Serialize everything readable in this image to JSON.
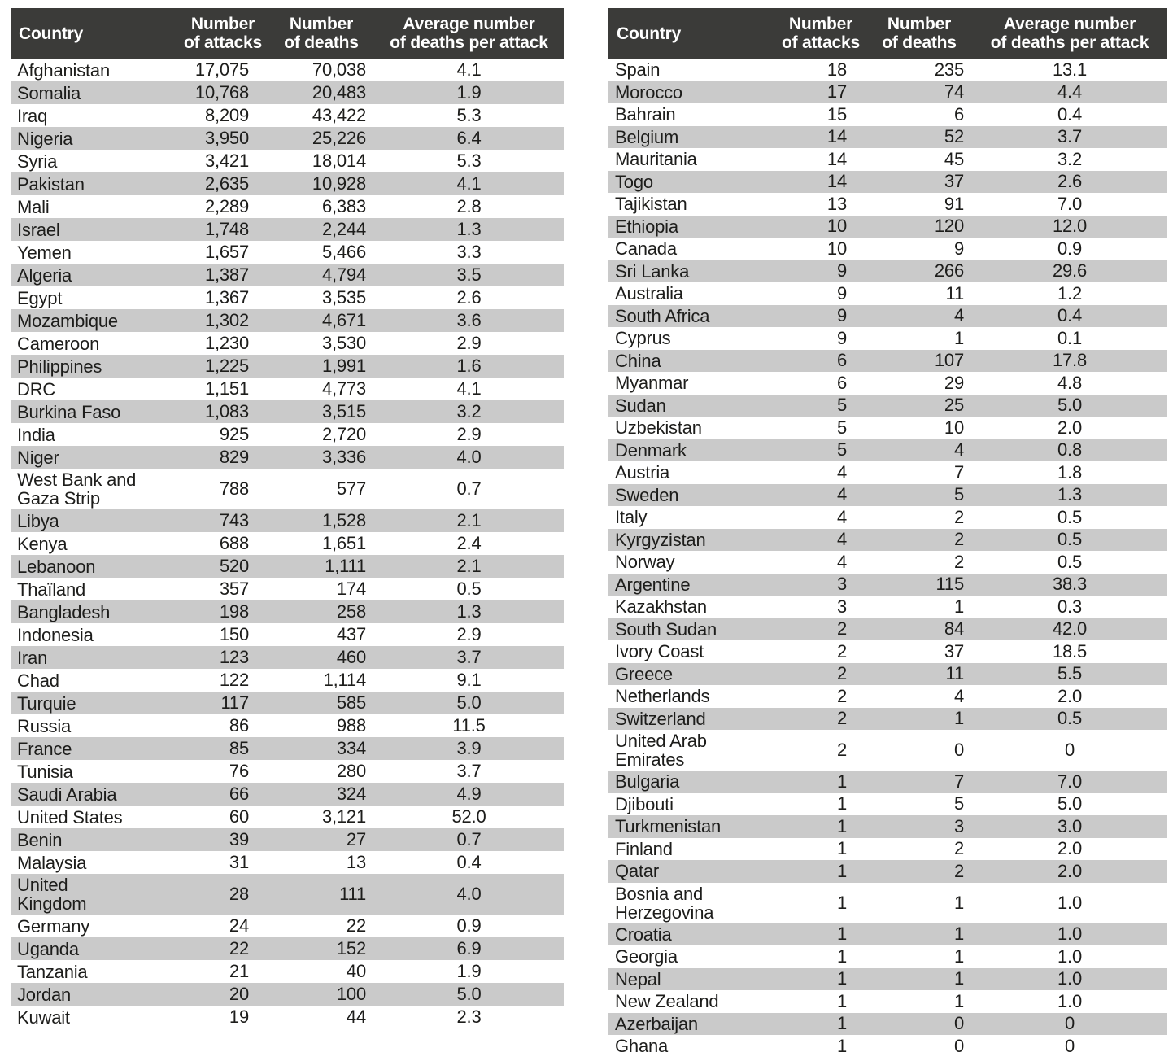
{
  "colors": {
    "header_bg": "#3b3b39",
    "header_text": "#ffffff",
    "row_stripe": "#cacaca",
    "row_plain": "#ffffff",
    "body_text": "#1d1d1b"
  },
  "chart_data": [
    {
      "type": "table",
      "name": "left_table",
      "title": "",
      "columns": [
        "Country",
        "Number of attacks",
        "Number of deaths",
        "Average number of deaths per attack"
      ],
      "columns_display": [
        "Country",
        "Number\nof attacks",
        "Number\nof deaths",
        "Average number\nof deaths per attack"
      ],
      "rows": [
        [
          "Afghanistan",
          "17,075",
          "70,038",
          "4.1"
        ],
        [
          "Somalia",
          "10,768",
          "20,483",
          "1.9"
        ],
        [
          "Iraq",
          "8,209",
          "43,422",
          "5.3"
        ],
        [
          "Nigeria",
          "3,950",
          "25,226",
          "6.4"
        ],
        [
          "Syria",
          "3,421",
          "18,014",
          "5.3"
        ],
        [
          "Pakistan",
          "2,635",
          "10,928",
          "4.1"
        ],
        [
          "Mali",
          "2,289",
          "6,383",
          "2.8"
        ],
        [
          "Israel",
          "1,748",
          "2,244",
          "1.3"
        ],
        [
          "Yemen",
          "1,657",
          "5,466",
          "3.3"
        ],
        [
          "Algeria",
          "1,387",
          "4,794",
          "3.5"
        ],
        [
          "Egypt",
          "1,367",
          "3,535",
          "2.6"
        ],
        [
          "Mozambique",
          "1,302",
          "4,671",
          "3.6"
        ],
        [
          "Cameroon",
          "1,230",
          "3,530",
          "2.9"
        ],
        [
          "Philippines",
          "1,225",
          "1,991",
          "1.6"
        ],
        [
          "DRC",
          "1,151",
          "4,773",
          "4.1"
        ],
        [
          "Burkina Faso",
          "1,083",
          "3,515",
          "3.2"
        ],
        [
          "India",
          "925",
          "2,720",
          "2.9"
        ],
        [
          "Niger",
          "829",
          "3,336",
          "4.0"
        ],
        [
          "West Bank and\nGaza Strip",
          "788",
          "577",
          "0.7"
        ],
        [
          "Libya",
          "743",
          "1,528",
          "2.1"
        ],
        [
          "Kenya",
          "688",
          "1,651",
          "2.4"
        ],
        [
          "Lebanoon",
          "520",
          "1,111",
          "2.1"
        ],
        [
          "Thaïland",
          "357",
          "174",
          "0.5"
        ],
        [
          "Bangladesh",
          "198",
          "258",
          "1.3"
        ],
        [
          "Indonesia",
          "150",
          "437",
          "2.9"
        ],
        [
          "Iran",
          "123",
          "460",
          "3.7"
        ],
        [
          "Chad",
          "122",
          "1,114",
          "9.1"
        ],
        [
          "Turquie",
          "117",
          "585",
          "5.0"
        ],
        [
          "Russia",
          "86",
          "988",
          "11.5"
        ],
        [
          "France",
          "85",
          "334",
          "3.9"
        ],
        [
          "Tunisia",
          "76",
          "280",
          "3.7"
        ],
        [
          "Saudi Arabia",
          "66",
          "324",
          "4.9"
        ],
        [
          "United States",
          "60",
          "3,121",
          "52.0"
        ],
        [
          "Benin",
          "39",
          "27",
          "0.7"
        ],
        [
          "Malaysia",
          "31",
          "13",
          "0.4"
        ],
        [
          "United\nKingdom",
          "28",
          "111",
          "4.0"
        ],
        [
          "Germany",
          "24",
          "22",
          "0.9"
        ],
        [
          "Uganda",
          "22",
          "152",
          "6.9"
        ],
        [
          "Tanzania",
          "21",
          "40",
          "1.9"
        ],
        [
          "Jordan",
          "20",
          "100",
          "5.0"
        ],
        [
          "Kuwait",
          "19",
          "44",
          "2.3"
        ]
      ]
    },
    {
      "type": "table",
      "name": "right_table",
      "title": "",
      "columns": [
        "Country",
        "Number of attacks",
        "Number of deaths",
        "Average number of deaths per attack"
      ],
      "columns_display": [
        "Country",
        "Number\nof attacks",
        "Number\nof deaths",
        "Average number\nof deaths per attack"
      ],
      "rows": [
        [
          "Spain",
          "18",
          "235",
          "13.1"
        ],
        [
          "Morocco",
          "17",
          "74",
          "4.4"
        ],
        [
          "Bahrain",
          "15",
          "6",
          "0.4"
        ],
        [
          "Belgium",
          "14",
          "52",
          "3.7"
        ],
        [
          "Mauritania",
          "14",
          "45",
          "3.2"
        ],
        [
          "Togo",
          "14",
          "37",
          "2.6"
        ],
        [
          "Tajikistan",
          "13",
          "91",
          "7.0"
        ],
        [
          "Ethiopia",
          "10",
          "120",
          "12.0"
        ],
        [
          "Canada",
          "10",
          "9",
          "0.9"
        ],
        [
          "Sri Lanka",
          "9",
          "266",
          "29.6"
        ],
        [
          "Australia",
          "9",
          "11",
          "1.2"
        ],
        [
          "South Africa",
          "9",
          "4",
          "0.4"
        ],
        [
          "Cyprus",
          "9",
          "1",
          "0.1"
        ],
        [
          "China",
          "6",
          "107",
          "17.8"
        ],
        [
          "Myanmar",
          "6",
          "29",
          "4.8"
        ],
        [
          "Sudan",
          "5",
          "25",
          "5.0"
        ],
        [
          "Uzbekistan",
          "5",
          "10",
          "2.0"
        ],
        [
          "Denmark",
          "5",
          "4",
          "0.8"
        ],
        [
          "Austria",
          "4",
          "7",
          "1.8"
        ],
        [
          "Sweden",
          "4",
          "5",
          "1.3"
        ],
        [
          "Italy",
          "4",
          "2",
          "0.5"
        ],
        [
          "Kyrgyzistan",
          "4",
          "2",
          "0.5"
        ],
        [
          "Norway",
          "4",
          "2",
          "0.5"
        ],
        [
          "Argentine",
          "3",
          "115",
          "38.3"
        ],
        [
          "Kazakhstan",
          "3",
          "1",
          "0.3"
        ],
        [
          "South Sudan",
          "2",
          "84",
          "42.0"
        ],
        [
          "Ivory Coast",
          "2",
          "37",
          "18.5"
        ],
        [
          "Greece",
          "2",
          "11",
          "5.5"
        ],
        [
          "Netherlands",
          "2",
          "4",
          "2.0"
        ],
        [
          "Switzerland",
          "2",
          "1",
          "0.5"
        ],
        [
          "United Arab\nEmirates",
          "2",
          "0",
          "0"
        ],
        [
          "Bulgaria",
          "1",
          "7",
          "7.0"
        ],
        [
          "Djibouti",
          "1",
          "5",
          "5.0"
        ],
        [
          "Turkmenistan",
          "1",
          "3",
          "3.0"
        ],
        [
          "Finland",
          "1",
          "2",
          "2.0"
        ],
        [
          "Qatar",
          "1",
          "2",
          "2.0"
        ],
        [
          "Bosnia and\nHerzegovina",
          "1",
          "1",
          "1.0"
        ],
        [
          "Croatia",
          "1",
          "1",
          "1.0"
        ],
        [
          "Georgia",
          "1",
          "1",
          "1.0"
        ],
        [
          "Nepal",
          "1",
          "1",
          "1.0"
        ],
        [
          "New Zealand",
          "1",
          "1",
          "1.0"
        ],
        [
          "Azerbaijan",
          "1",
          "0",
          "0"
        ],
        [
          "Ghana",
          "1",
          "0",
          "0"
        ]
      ]
    }
  ]
}
